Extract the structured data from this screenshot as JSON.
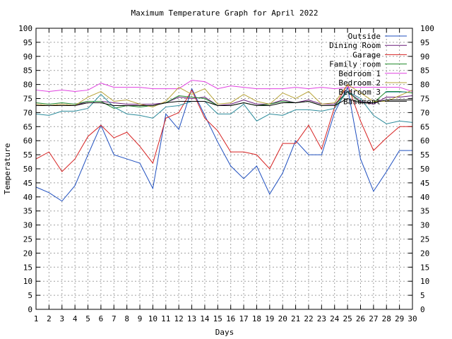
{
  "chart_data": {
    "type": "line",
    "title": "Maximum Temperature Graph for April 2022",
    "xlabel": "Days",
    "ylabel": "Temperature",
    "xlim": [
      1,
      30
    ],
    "ylim": [
      0,
      100
    ],
    "x_ticks": [
      1,
      2,
      3,
      4,
      5,
      6,
      7,
      8,
      9,
      10,
      11,
      12,
      13,
      14,
      15,
      16,
      17,
      18,
      19,
      20,
      21,
      22,
      23,
      24,
      25,
      26,
      27,
      28,
      29,
      30
    ],
    "y_ticks": [
      0,
      5,
      10,
      15,
      20,
      25,
      30,
      35,
      40,
      45,
      50,
      55,
      60,
      65,
      70,
      75,
      80,
      85,
      90,
      95,
      100
    ],
    "grid": true,
    "legend_position": "top-right",
    "x": [
      1,
      2,
      3,
      4,
      5,
      6,
      7,
      8,
      9,
      10,
      11,
      12,
      13,
      14,
      15,
      16,
      17,
      18,
      19,
      20,
      21,
      22,
      23,
      24,
      25,
      26,
      27,
      28,
      29,
      30
    ],
    "series": [
      {
        "name": "Outside",
        "color": "#1f4fbf",
        "values": [
          43.5,
          41.5,
          38.5,
          44,
          55,
          65.5,
          55,
          53.5,
          52,
          43,
          69.5,
          64,
          78.5,
          69,
          59.5,
          51,
          46.5,
          51,
          41,
          48.5,
          60,
          55,
          55,
          70,
          79,
          53.5,
          42,
          49,
          56.5,
          56.5
        ]
      },
      {
        "name": "Dining Room",
        "color": "#6a1b7a",
        "values": [
          73,
          72.5,
          73,
          72.5,
          74,
          74,
          73.5,
          73,
          73,
          73,
          73.5,
          75.5,
          75,
          75.5,
          72.5,
          73,
          74.5,
          73,
          73,
          74.5,
          73.5,
          74.5,
          73,
          73,
          77.5,
          74,
          73,
          75.5,
          75.5,
          76
        ]
      },
      {
        "name": "Garage",
        "color": "#d62020",
        "values": [
          53.5,
          56,
          49,
          53.5,
          61.5,
          65.5,
          61,
          63,
          58,
          52,
          68,
          70,
          78,
          68,
          63.5,
          56,
          56,
          55,
          50,
          59,
          59,
          65.5,
          57,
          72,
          80,
          67,
          56.5,
          61,
          65,
          65
        ]
      },
      {
        "name": "Family room",
        "color": "#1f8a2a",
        "values": [
          73.5,
          73,
          73.5,
          73,
          74,
          74,
          71.5,
          72.5,
          72,
          72.5,
          73.5,
          76,
          75.5,
          75,
          72.5,
          72.5,
          73.5,
          72.5,
          73,
          74,
          73.5,
          74,
          72.5,
          72.5,
          77.5,
          73.5,
          73.5,
          77.5,
          77.5,
          77
        ]
      },
      {
        "name": "Bedroom 1",
        "color": "#e040e0",
        "values": [
          78,
          77.5,
          78,
          77.5,
          78,
          80.5,
          79,
          79,
          79,
          78.5,
          78.5,
          78.5,
          81.5,
          81,
          78.5,
          79.5,
          79,
          78.5,
          78.5,
          78.5,
          79,
          78.5,
          79,
          78.5,
          79,
          79,
          79,
          79,
          79,
          77.5
        ]
      },
      {
        "name": "Bedroom 2",
        "color": "#b8a43a",
        "values": [
          73,
          72.5,
          73,
          72.5,
          75.5,
          77.5,
          74,
          74.5,
          73,
          72,
          74,
          79,
          76.5,
          78.5,
          73,
          73.5,
          76.5,
          74,
          73,
          77,
          75,
          77.5,
          73,
          73.5,
          80,
          77,
          74,
          74,
          76,
          78
        ]
      },
      {
        "name": "Bedroom 3",
        "color": "#2a8a9a",
        "values": [
          69.5,
          69,
          70.5,
          70.5,
          71.5,
          76.5,
          72,
          69.5,
          69,
          68,
          72,
          72.5,
          74,
          74,
          69.5,
          69.5,
          73,
          67,
          69.5,
          69,
          71,
          71,
          70.5,
          71.5,
          77.5,
          75,
          69,
          66,
          67,
          66.5
        ]
      },
      {
        "name": "Basement",
        "color": "#000000",
        "values": [
          72.5,
          72.5,
          72.5,
          72.5,
          73.5,
          73.5,
          72.5,
          72.5,
          72.5,
          72.5,
          73.5,
          74,
          74,
          74,
          72.5,
          72.5,
          73.5,
          72.5,
          72.5,
          73.5,
          73.5,
          74,
          72.5,
          72.5,
          75,
          73.5,
          73.5,
          74.5,
          74.5,
          74.5
        ]
      }
    ]
  }
}
